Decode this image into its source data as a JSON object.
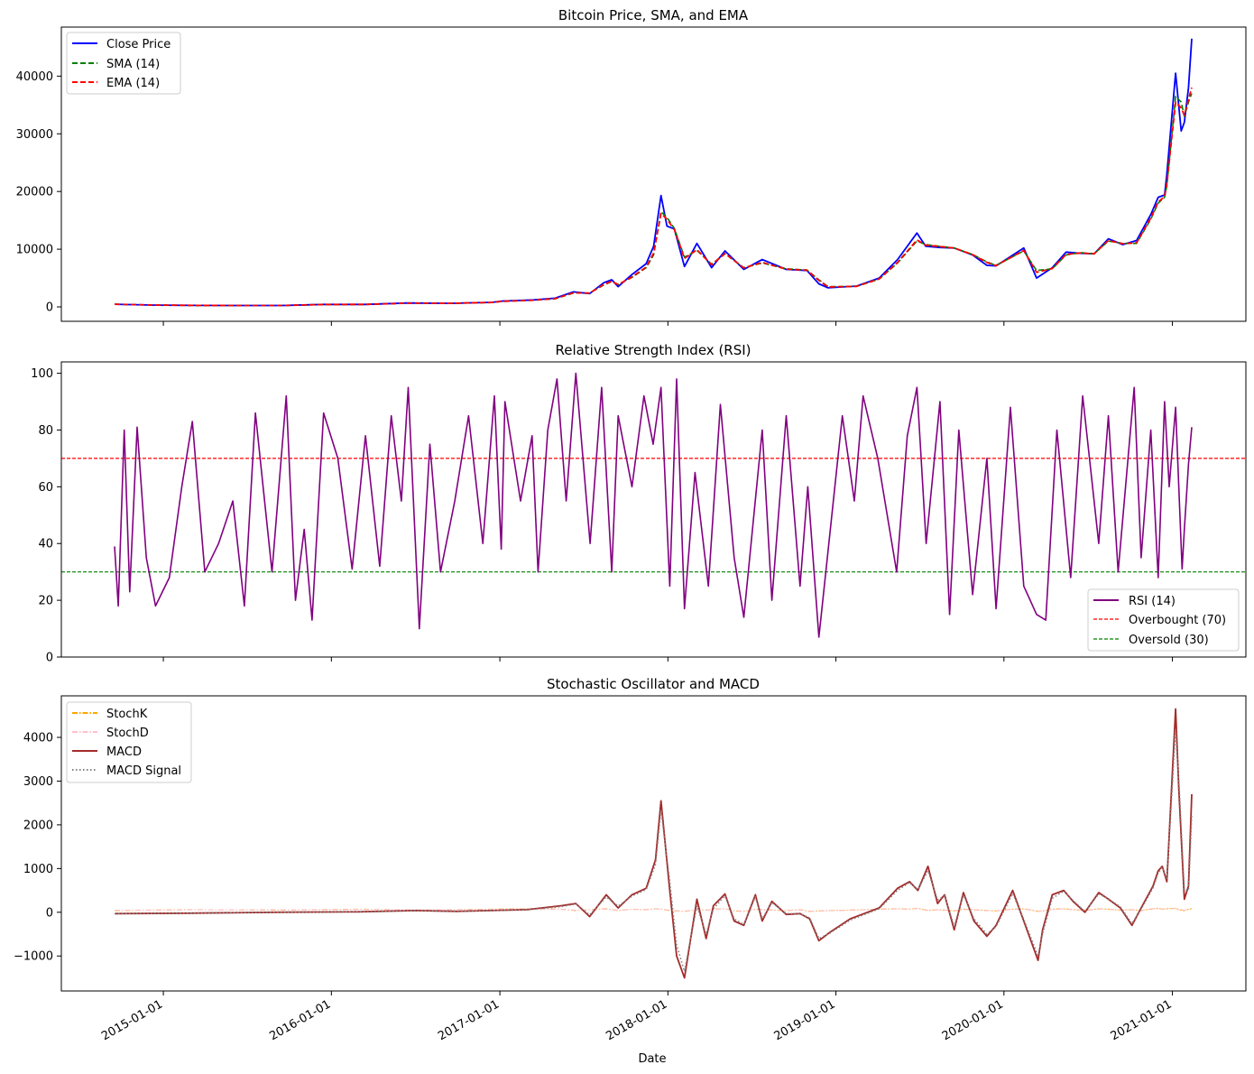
{
  "figure": {
    "xlabel": "Date"
  },
  "x_ticks": [
    "2015-01-01",
    "2016-01-01",
    "2017-01-01",
    "2018-01-01",
    "2019-01-01",
    "2020-01-01",
    "2021-01-01"
  ],
  "chart_data": [
    {
      "type": "line",
      "title": "Bitcoin Price, SMA, and EMA",
      "xlabel": "",
      "ylabel": "",
      "x_range": [
        "2014-09-17",
        "2021-02-12"
      ],
      "ylim": [
        -2500,
        48500
      ],
      "yticks": [
        0,
        10000,
        20000,
        30000,
        40000
      ],
      "grid": false,
      "legend_position": "upper left",
      "x": [
        "2014-09-17",
        "2014-12-15",
        "2015-03-15",
        "2015-06-15",
        "2015-09-15",
        "2015-12-15",
        "2016-03-15",
        "2016-06-15",
        "2016-09-15",
        "2016-12-15",
        "2017-01-05",
        "2017-03-15",
        "2017-05-01",
        "2017-06-10",
        "2017-07-15",
        "2017-08-15",
        "2017-09-01",
        "2017-09-15",
        "2017-10-15",
        "2017-11-15",
        "2017-12-01",
        "2017-12-17",
        "2017-12-30",
        "2018-01-15",
        "2018-02-06",
        "2018-03-05",
        "2018-04-06",
        "2018-05-05",
        "2018-06-15",
        "2018-07-25",
        "2018-09-15",
        "2018-10-30",
        "2018-11-25",
        "2018-12-15",
        "2019-02-15",
        "2019-04-05",
        "2019-05-15",
        "2019-06-26",
        "2019-07-15",
        "2019-08-15",
        "2019-09-15",
        "2019-10-25",
        "2019-11-25",
        "2019-12-15",
        "2020-02-13",
        "2020-03-12",
        "2020-04-15",
        "2020-05-15",
        "2020-06-15",
        "2020-07-15",
        "2020-08-15",
        "2020-09-15",
        "2020-10-15",
        "2020-11-15",
        "2020-12-01",
        "2020-12-15",
        "2020-12-20",
        "2021-01-08",
        "2021-01-20",
        "2021-01-27",
        "2021-02-05",
        "2021-02-12"
      ],
      "series": [
        {
          "name": "Close Price",
          "color": "#0000ff",
          "dash": "solid",
          "values": [
            450,
            300,
            250,
            240,
            230,
            430,
            420,
            680,
            610,
            780,
            1000,
            1200,
            1500,
            2600,
            2300,
            4200,
            4700,
            3500,
            5600,
            7500,
            10500,
            19300,
            14000,
            13500,
            7000,
            11000,
            6800,
            9700,
            6500,
            8200,
            6500,
            6300,
            4000,
            3300,
            3600,
            5000,
            8200,
            12800,
            10500,
            10300,
            10200,
            9000,
            7200,
            7100,
            10200,
            5000,
            6800,
            9500,
            9300,
            9200,
            11800,
            10800,
            11500,
            16000,
            19000,
            19400,
            23000,
            40500,
            30500,
            32000,
            38000,
            46500
          ]
        },
        {
          "name": "SMA (14)",
          "color": "#008000",
          "dash": "dashed",
          "values": [
            450,
            320,
            260,
            240,
            235,
            400,
            420,
            640,
            615,
            760,
            950,
            1150,
            1400,
            2400,
            2400,
            3800,
            4400,
            3900,
            5100,
            6800,
            9000,
            16500,
            15500,
            13600,
            8600,
            9800,
            7400,
            9200,
            6800,
            7600,
            6600,
            6400,
            4700,
            3500,
            3550,
            4800,
            7600,
            11400,
            10800,
            10500,
            10200,
            9100,
            7800,
            7200,
            9700,
            6300,
            6600,
            9000,
            9400,
            9200,
            11400,
            11000,
            11000,
            15200,
            18000,
            19000,
            21000,
            36500,
            35500,
            33000,
            35500,
            37000
          ]
        },
        {
          "name": "EMA (14)",
          "color": "#ff0000",
          "dash": "dashed",
          "values": [
            450,
            315,
            258,
            240,
            234,
            410,
            420,
            650,
            612,
            765,
            960,
            1160,
            1420,
            2450,
            2380,
            3900,
            4450,
            3850,
            5200,
            6900,
            9300,
            16200,
            15200,
            13400,
            8400,
            9900,
            7300,
            9250,
            6750,
            7700,
            6550,
            6350,
            4600,
            3450,
            3560,
            4850,
            7700,
            11600,
            10700,
            10450,
            10200,
            9050,
            7700,
            7150,
            9800,
            6000,
            6650,
            9100,
            9350,
            9200,
            11500,
            10950,
            11100,
            15400,
            18200,
            19100,
            21300,
            35500,
            34500,
            33200,
            36000,
            38000
          ]
        }
      ]
    },
    {
      "type": "line",
      "title": "Relative Strength Index (RSI)",
      "xlabel": "",
      "ylabel": "",
      "x_range": [
        "2014-09-17",
        "2021-02-12"
      ],
      "ylim": [
        0,
        104
      ],
      "yticks": [
        0,
        20,
        40,
        60,
        80,
        100
      ],
      "grid": false,
      "legend_position": "lower right",
      "x": [
        "2014-09-17",
        "2014-09-25",
        "2014-10-08",
        "2014-10-20",
        "2014-11-05",
        "2014-11-25",
        "2014-12-15",
        "2015-01-14",
        "2015-02-10",
        "2015-03-05",
        "2015-04-01",
        "2015-05-01",
        "2015-06-01",
        "2015-06-26",
        "2015-07-20",
        "2015-08-25",
        "2015-09-25",
        "2015-10-15",
        "2015-11-03",
        "2015-11-20",
        "2015-12-15",
        "2016-01-15",
        "2016-02-15",
        "2016-03-15",
        "2016-04-15",
        "2016-05-10",
        "2016-06-01",
        "2016-06-16",
        "2016-07-10",
        "2016-08-02",
        "2016-08-25",
        "2016-09-25",
        "2016-10-25",
        "2016-11-25",
        "2016-12-20",
        "2017-01-04",
        "2017-01-12",
        "2017-02-15",
        "2017-03-12",
        "2017-03-25",
        "2017-04-15",
        "2017-05-05",
        "2017-05-25",
        "2017-06-15",
        "2017-07-16",
        "2017-08-10",
        "2017-09-01",
        "2017-09-15",
        "2017-10-15",
        "2017-11-10",
        "2017-11-30",
        "2017-12-17",
        "2018-01-05",
        "2018-01-20",
        "2018-02-06",
        "2018-03-01",
        "2018-03-30",
        "2018-04-25",
        "2018-05-25",
        "2018-06-15",
        "2018-07-25",
        "2018-08-15",
        "2018-09-15",
        "2018-10-15",
        "2018-11-01",
        "2018-11-25",
        "2018-12-20",
        "2019-01-15",
        "2019-02-10",
        "2019-03-01",
        "2019-04-02",
        "2019-05-13",
        "2019-06-05",
        "2019-06-26",
        "2019-07-16",
        "2019-08-15",
        "2019-09-05",
        "2019-09-25",
        "2019-10-25",
        "2019-11-25",
        "2019-12-15",
        "2020-01-15",
        "2020-02-13",
        "2020-03-12",
        "2020-04-01",
        "2020-04-25",
        "2020-05-25",
        "2020-06-20",
        "2020-07-25",
        "2020-08-15",
        "2020-09-05",
        "2020-10-10",
        "2020-10-25",
        "2020-11-15",
        "2020-12-01",
        "2020-12-15",
        "2020-12-25",
        "2021-01-08",
        "2021-01-22",
        "2021-01-27",
        "2021-02-05",
        "2021-02-12"
      ],
      "series": [
        {
          "name": "RSI (14)",
          "color": "#800080",
          "dash": "solid",
          "values": [
            39,
            18,
            80,
            23,
            81,
            35,
            18,
            28,
            60,
            83,
            30,
            40,
            55,
            18,
            86,
            30,
            92,
            20,
            45,
            13,
            86,
            70,
            31,
            78,
            32,
            85,
            55,
            95,
            10,
            75,
            30,
            55,
            85,
            40,
            92,
            38,
            90,
            55,
            78,
            30,
            80,
            98,
            55,
            100,
            40,
            95,
            30,
            85,
            60,
            92,
            75,
            95,
            25,
            98,
            17,
            65,
            25,
            89,
            35,
            14,
            80,
            20,
            85,
            25,
            60,
            7,
            45,
            85,
            55,
            92,
            70,
            30,
            78,
            95,
            40,
            90,
            15,
            80,
            22,
            70,
            17,
            88,
            25,
            15,
            13,
            80,
            28,
            92,
            40,
            85,
            30,
            95,
            35,
            80,
            28,
            90,
            60,
            88,
            31,
            45,
            68,
            81
          ]
        }
      ],
      "reference_lines": [
        {
          "name": "Overbought (70)",
          "value": 70,
          "color": "#ff0000",
          "dash": "dashed"
        },
        {
          "name": "Oversold (30)",
          "value": 30,
          "color": "#008000",
          "dash": "dashed"
        }
      ]
    },
    {
      "type": "line",
      "title": "Stochastic Oscillator and MACD",
      "xlabel": "Date",
      "ylabel": "",
      "x_range": [
        "2014-09-17",
        "2021-02-12"
      ],
      "ylim": [
        -1800,
        4950
      ],
      "yticks": [
        -1000,
        0,
        1000,
        2000,
        3000,
        4000
      ],
      "grid": false,
      "legend_position": "upper left",
      "x": [
        "2014-09-17",
        "2015-03-01",
        "2015-09-01",
        "2016-03-01",
        "2016-07-01",
        "2016-10-01",
        "2017-03-01",
        "2017-05-15",
        "2017-06-15",
        "2017-07-15",
        "2017-08-20",
        "2017-09-15",
        "2017-10-15",
        "2017-11-15",
        "2017-12-05",
        "2017-12-17",
        "2018-01-05",
        "2018-01-20",
        "2018-02-06",
        "2018-03-05",
        "2018-03-25",
        "2018-04-10",
        "2018-05-05",
        "2018-05-25",
        "2018-06-15",
        "2018-07-10",
        "2018-07-25",
        "2018-08-15",
        "2018-09-15",
        "2018-10-15",
        "2018-11-05",
        "2018-11-25",
        "2018-12-20",
        "2019-02-01",
        "2019-04-05",
        "2019-05-15",
        "2019-06-10",
        "2019-06-28",
        "2019-07-20",
        "2019-08-10",
        "2019-08-25",
        "2019-09-15",
        "2019-10-05",
        "2019-10-28",
        "2019-11-25",
        "2019-12-15",
        "2020-01-20",
        "2020-02-13",
        "2020-03-15",
        "2020-03-25",
        "2020-04-15",
        "2020-05-10",
        "2020-05-30",
        "2020-06-25",
        "2020-07-25",
        "2020-08-15",
        "2020-09-10",
        "2020-10-05",
        "2020-10-25",
        "2020-11-20",
        "2020-12-01",
        "2020-12-10",
        "2020-12-20",
        "2021-01-08",
        "2021-01-15",
        "2021-01-27",
        "2021-02-05",
        "2021-02-12"
      ],
      "series": [
        {
          "name": "StochK",
          "color": "#ffa500",
          "dash": "dashdot",
          "values": [
            40,
            60,
            50,
            70,
            50,
            60,
            80,
            70,
            40,
            60,
            80,
            40,
            70,
            60,
            80,
            70,
            40,
            30,
            20,
            60,
            50,
            70,
            80,
            30,
            20,
            70,
            60,
            50,
            40,
            60,
            20,
            30,
            40,
            50,
            70,
            80,
            70,
            90,
            40,
            60,
            50,
            30,
            70,
            60,
            40,
            30,
            70,
            80,
            20,
            30,
            70,
            80,
            60,
            40,
            80,
            70,
            50,
            60,
            40,
            80,
            90,
            70,
            80,
            90,
            60,
            40,
            70,
            80
          ]
        },
        {
          "name": "StochD",
          "color": "#ffc0cb",
          "dash": "dashdot",
          "values": [
            45,
            55,
            55,
            65,
            55,
            58,
            75,
            70,
            45,
            58,
            75,
            45,
            68,
            62,
            78,
            72,
            45,
            35,
            25,
            55,
            52,
            68,
            78,
            35,
            25,
            65,
            60,
            52,
            42,
            58,
            25,
            30,
            38,
            50,
            68,
            78,
            72,
            85,
            45,
            58,
            52,
            35,
            65,
            60,
            42,
            32,
            68,
            78,
            25,
            30,
            65,
            78,
            62,
            42,
            78,
            70,
            52,
            58,
            42,
            78,
            88,
            72,
            78,
            88,
            62,
            45,
            68,
            78
          ]
        },
        {
          "name": "MACD",
          "color": "#a52a2a",
          "dash": "solid",
          "values": [
            -30,
            -20,
            0,
            10,
            40,
            20,
            60,
            150,
            200,
            -100,
            400,
            100,
            400,
            550,
            1200,
            2550,
            500,
            -1000,
            -1500,
            300,
            -600,
            150,
            420,
            -200,
            -300,
            400,
            -200,
            250,
            -50,
            -30,
            -150,
            -650,
            -450,
            -150,
            100,
            550,
            700,
            500,
            1050,
            200,
            400,
            -400,
            450,
            -200,
            -550,
            -300,
            500,
            -200,
            -1100,
            -400,
            400,
            500,
            250,
            0,
            450,
            300,
            100,
            -300,
            100,
            600,
            950,
            1050,
            700,
            4650,
            2800,
            300,
            600,
            2700
          ]
        },
        {
          "name": "MACD Signal",
          "color": "#808080",
          "dash": "dotted",
          "values": [
            -30,
            -20,
            0,
            10,
            35,
            22,
            55,
            130,
            190,
            -60,
            350,
            140,
            370,
            520,
            1100,
            2350,
            700,
            -750,
            -1350,
            150,
            -500,
            80,
            380,
            -150,
            -280,
            350,
            -150,
            220,
            -30,
            -40,
            -130,
            -600,
            -470,
            -180,
            80,
            500,
            680,
            520,
            950,
            280,
            380,
            -330,
            400,
            -150,
            -500,
            -330,
            430,
            -160,
            -1000,
            -480,
            320,
            480,
            270,
            20,
            420,
            310,
            120,
            -260,
            70,
            560,
            900,
            1030,
            760,
            4200,
            3000,
            500,
            500,
            2200
          ]
        }
      ]
    }
  ]
}
